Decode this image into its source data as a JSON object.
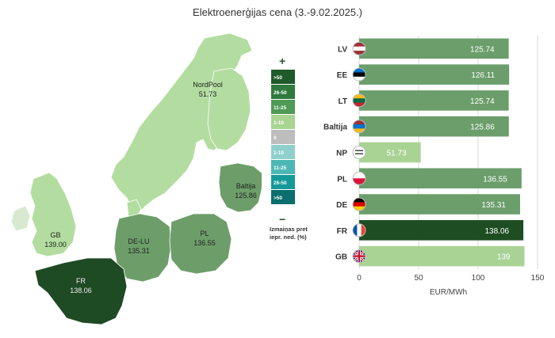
{
  "title": "Elektroenerģijas cena (3.-9.02.2025.)",
  "colors": {
    "bar_default": "#6b9e6b",
    "bar_highlight": "#1e4d22",
    "bar_light": "#a9d395",
    "map_light": "#b3dda0",
    "map_mid": "#6d9e6a",
    "map_dark": "#1e4a24"
  },
  "map": {
    "regions": [
      {
        "key": "nordpool",
        "name": "NordPool",
        "value": "51.73"
      },
      {
        "key": "baltija",
        "name": "Baltija",
        "value": "125.86"
      },
      {
        "key": "gb",
        "name": "GB",
        "value": "139.00"
      },
      {
        "key": "delu",
        "name": "DE-LU",
        "value": "135.31"
      },
      {
        "key": "pl",
        "name": "PL",
        "value": "136.55"
      },
      {
        "key": "fr",
        "name": "FR",
        "value": "138.06"
      }
    ]
  },
  "legend": {
    "plus": "+",
    "minus": "−",
    "items": [
      {
        "label": ">50",
        "color": "#1e5a2a"
      },
      {
        "label": "26-50",
        "color": "#2f7a3c"
      },
      {
        "label": "11-25",
        "color": "#4f9a55"
      },
      {
        "label": "1-10",
        "color": "#a8d592"
      },
      {
        "label": "0",
        "color": "#bdbdbd"
      },
      {
        "label": "1-10",
        "color": "#8fd0cc"
      },
      {
        "label": "11-25",
        "color": "#4cb8b5"
      },
      {
        "label": "26-50",
        "color": "#159a99"
      },
      {
        "label": ">50",
        "color": "#0a6f6e"
      }
    ],
    "note_line1": "Izmaiņas pret",
    "note_line2": "iepr. ned. (%)"
  },
  "chart_data": {
    "type": "bar",
    "orientation": "horizontal",
    "categories": [
      "LV",
      "EE",
      "LT",
      "Baltija",
      "NP",
      "PL",
      "DE",
      "FR",
      "GB"
    ],
    "values": [
      125.74,
      126.11,
      125.74,
      125.86,
      51.73,
      136.55,
      135.31,
      138.06,
      139
    ],
    "value_labels": [
      "125.74",
      "126.11",
      "125.74",
      "125.86",
      "51.73",
      "136.55",
      "135.31",
      "138.06",
      "139"
    ],
    "xlabel": "EUR/MWh",
    "xlim": [
      0,
      150
    ],
    "xticks": [
      0,
      50,
      100,
      150
    ],
    "grid": true
  }
}
